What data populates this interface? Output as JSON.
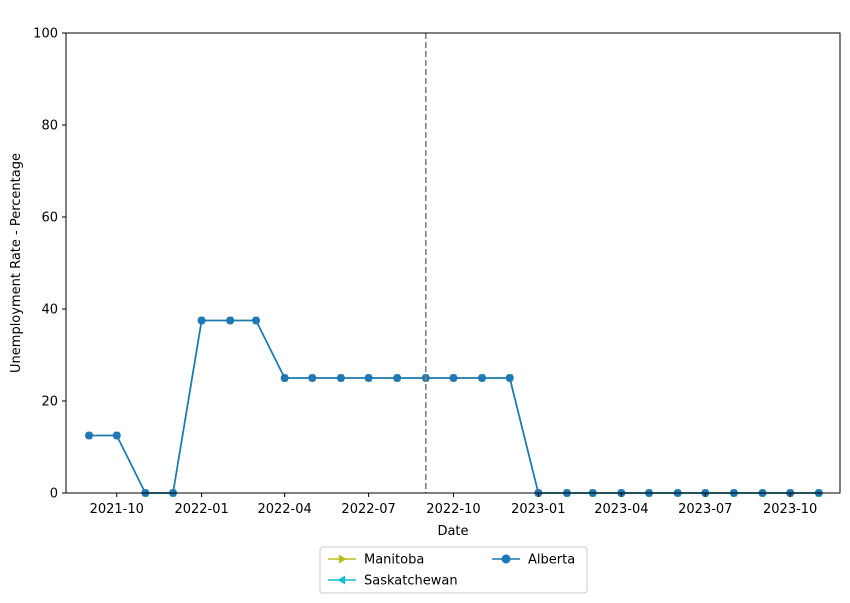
{
  "chart_data": {
    "type": "line",
    "title": "",
    "xlabel": "Date",
    "ylabel": "Unemployment Rate - Percentage",
    "ylim": [
      0,
      100
    ],
    "xlim": [
      "2021-08-07",
      "2023-11-24"
    ],
    "yticks": [
      "0",
      "20",
      "40",
      "60",
      "80",
      "100"
    ],
    "xticks": [
      {
        "date": "2021-10-01",
        "label": "2021-10"
      },
      {
        "date": "2022-01-01",
        "label": "2022-01"
      },
      {
        "date": "2022-04-01",
        "label": "2022-04"
      },
      {
        "date": "2022-07-01",
        "label": "2022-07"
      },
      {
        "date": "2022-10-01",
        "label": "2022-10"
      },
      {
        "date": "2023-01-01",
        "label": "2023-01"
      },
      {
        "date": "2023-04-01",
        "label": "2023-04"
      },
      {
        "date": "2023-07-01",
        "label": "2023-07"
      },
      {
        "date": "2023-10-01",
        "label": "2023-10"
      }
    ],
    "vline": {
      "date": "2022-09-01",
      "color": "#808080",
      "style": "dashed"
    },
    "grid": false,
    "legend_position": "bottom-center",
    "x": [
      "2021-09-01",
      "2021-10-01",
      "2021-11-01",
      "2021-12-01",
      "2022-01-01",
      "2022-02-01",
      "2022-03-01",
      "2022-04-01",
      "2022-05-01",
      "2022-06-01",
      "2022-07-01",
      "2022-08-01",
      "2022-09-01",
      "2022-10-01",
      "2022-11-01",
      "2022-12-01",
      "2023-01-01",
      "2023-02-01",
      "2023-03-01",
      "2023-04-01",
      "2023-05-01",
      "2023-06-01",
      "2023-07-01",
      "2023-08-01",
      "2023-09-01",
      "2023-10-01",
      "2023-11-01"
    ],
    "series": [
      {
        "name": "Manitoba",
        "color": "#bcbd22",
        "marker": "triangle-right",
        "values": [
          12.5,
          12.5,
          0,
          0,
          37.5,
          37.5,
          37.5,
          25,
          25,
          25,
          25,
          25,
          25,
          25,
          25,
          25,
          0,
          0,
          0,
          0,
          0,
          0,
          0,
          0,
          0,
          0,
          0
        ]
      },
      {
        "name": "Saskatchewan",
        "color": "#17becf",
        "marker": "triangle-left",
        "values": [
          12.5,
          12.5,
          0,
          0,
          37.5,
          37.5,
          37.5,
          25,
          25,
          25,
          25,
          25,
          25,
          25,
          25,
          25,
          0,
          0,
          0,
          0,
          0,
          0,
          0,
          0,
          0,
          0,
          0
        ]
      },
      {
        "name": "Alberta",
        "color": "#1f77b4",
        "marker": "circle",
        "values": [
          12.5,
          12.5,
          0,
          0,
          37.5,
          37.5,
          37.5,
          25,
          25,
          25,
          25,
          25,
          25,
          25,
          25,
          25,
          0,
          0,
          0,
          0,
          0,
          0,
          0,
          0,
          0,
          0,
          0
        ]
      }
    ]
  }
}
